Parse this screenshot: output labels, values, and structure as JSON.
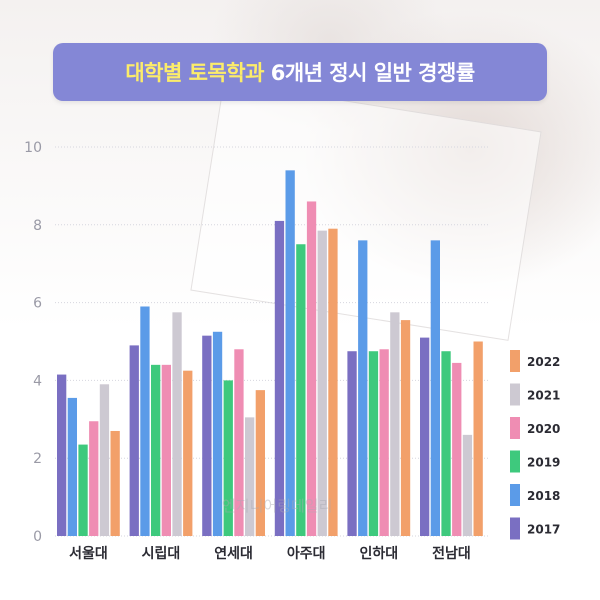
{
  "title": {
    "part1": "대학별 토목학과",
    "part2": " 6개년 정시 일반 경쟁률"
  },
  "watermark": "엔지니어링데일리",
  "chart_data": {
    "type": "bar",
    "categories": [
      "서울대",
      "시립대",
      "연세대",
      "아주대",
      "인하대",
      "전남대"
    ],
    "ylim": [
      0,
      10
    ],
    "yticks": [
      0,
      2,
      4,
      6,
      8,
      10
    ],
    "grid": true,
    "legend_position": "right",
    "series": [
      {
        "name": "2017",
        "color": "#7a6fc2",
        "values": [
          4.15,
          4.9,
          5.15,
          8.1,
          4.75,
          5.1
        ]
      },
      {
        "name": "2018",
        "color": "#5b9be8",
        "values": [
          3.55,
          5.9,
          5.25,
          9.4,
          7.6,
          7.6
        ]
      },
      {
        "name": "2019",
        "color": "#3ec97d",
        "values": [
          2.35,
          4.4,
          4.0,
          7.5,
          4.75,
          4.75
        ]
      },
      {
        "name": "2020",
        "color": "#ef8db3",
        "values": [
          2.95,
          4.4,
          4.8,
          8.6,
          4.8,
          4.45
        ]
      },
      {
        "name": "2021",
        "color": "#cdc9d2",
        "values": [
          3.9,
          5.75,
          3.05,
          7.85,
          5.75,
          2.6
        ]
      },
      {
        "name": "2022",
        "color": "#f2a06a",
        "values": [
          2.7,
          4.25,
          3.75,
          7.9,
          5.55,
          5.0
        ]
      }
    ]
  }
}
